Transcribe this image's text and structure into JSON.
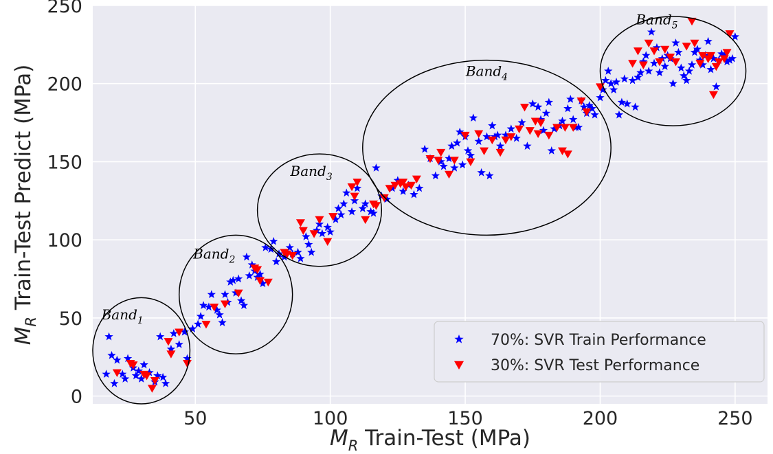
{
  "chart_data": {
    "type": "scatter",
    "xlabel": {
      "symbol": "M",
      "subscript": "R",
      "text": " Train-Test (MPa)"
    },
    "ylabel": {
      "symbol": "M",
      "subscript": "R",
      "text": " Train-Test Predict (MPa)"
    },
    "xlim": [
      12,
      262
    ],
    "ylim": [
      -5,
      250
    ],
    "xticks": [
      50,
      100,
      150,
      200,
      250
    ],
    "yticks": [
      0,
      50,
      100,
      150,
      200,
      250
    ],
    "grid": true,
    "legend_position": "lower-right",
    "colors": {
      "background": "#eaeaf2",
      "grid": "#ffffff",
      "train": "#0000ff",
      "test": "#ff0000"
    },
    "series": [
      {
        "name": "70%: SVR Train Performance",
        "marker": "star",
        "color": "#0000ff",
        "points": [
          [
            17,
            14
          ],
          [
            18,
            38
          ],
          [
            19,
            26
          ],
          [
            20,
            8
          ],
          [
            21,
            23
          ],
          [
            23,
            14
          ],
          [
            24,
            11
          ],
          [
            25,
            24
          ],
          [
            27,
            18
          ],
          [
            28,
            13
          ],
          [
            29,
            16
          ],
          [
            30,
            11
          ],
          [
            31,
            20
          ],
          [
            33,
            15
          ],
          [
            35,
            9
          ],
          [
            36,
            13
          ],
          [
            37,
            38
          ],
          [
            38,
            12
          ],
          [
            39,
            8
          ],
          [
            41,
            30
          ],
          [
            42,
            40
          ],
          [
            44,
            33
          ],
          [
            46,
            41
          ],
          [
            47,
            24
          ],
          [
            49,
            43
          ],
          [
            51,
            46
          ],
          [
            52,
            51
          ],
          [
            53,
            58
          ],
          [
            55,
            57
          ],
          [
            56,
            65
          ],
          [
            58,
            55
          ],
          [
            59,
            52
          ],
          [
            60,
            47
          ],
          [
            61,
            65
          ],
          [
            62,
            60
          ],
          [
            63,
            73
          ],
          [
            64,
            74
          ],
          [
            65,
            66
          ],
          [
            66,
            75
          ],
          [
            67,
            61
          ],
          [
            68,
            58
          ],
          [
            69,
            89
          ],
          [
            70,
            77
          ],
          [
            71,
            84
          ],
          [
            72,
            80
          ],
          [
            73,
            76
          ],
          [
            74,
            78
          ],
          [
            75,
            72
          ],
          [
            76,
            95
          ],
          [
            78,
            94
          ],
          [
            79,
            99
          ],
          [
            80,
            86
          ],
          [
            81,
            91
          ],
          [
            83,
            89
          ],
          [
            85,
            95
          ],
          [
            86,
            91
          ],
          [
            88,
            92
          ],
          [
            89,
            88
          ],
          [
            91,
            102
          ],
          [
            92,
            97
          ],
          [
            93,
            92
          ],
          [
            95,
            106
          ],
          [
            96,
            110
          ],
          [
            97,
            104
          ],
          [
            99,
            108
          ],
          [
            100,
            105
          ],
          [
            102,
            113
          ],
          [
            103,
            120
          ],
          [
            104,
            116
          ],
          [
            105,
            123
          ],
          [
            106,
            130
          ],
          [
            108,
            118
          ],
          [
            109,
            125
          ],
          [
            110,
            133
          ],
          [
            112,
            120
          ],
          [
            113,
            123
          ],
          [
            115,
            118
          ],
          [
            116,
            117
          ],
          [
            117,
            146
          ],
          [
            119,
            128
          ],
          [
            121,
            126
          ],
          [
            123,
            133
          ],
          [
            125,
            138
          ],
          [
            127,
            131
          ],
          [
            129,
            135
          ],
          [
            131,
            129
          ],
          [
            133,
            133
          ],
          [
            135,
            158
          ],
          [
            137,
            152
          ],
          [
            139,
            141
          ],
          [
            141,
            150
          ],
          [
            142,
            147
          ],
          [
            144,
            152
          ],
          [
            145,
            160
          ],
          [
            146,
            146
          ],
          [
            147,
            162
          ],
          [
            148,
            169
          ],
          [
            149,
            148
          ],
          [
            150,
            166
          ],
          [
            151,
            157
          ],
          [
            152,
            154
          ],
          [
            153,
            178
          ],
          [
            155,
            163
          ],
          [
            156,
            143
          ],
          [
            158,
            166
          ],
          [
            159,
            141
          ],
          [
            160,
            173
          ],
          [
            161,
            166
          ],
          [
            162,
            167
          ],
          [
            163,
            160
          ],
          [
            165,
            167
          ],
          [
            167,
            171
          ],
          [
            169,
            165
          ],
          [
            171,
            175
          ],
          [
            173,
            160
          ],
          [
            175,
            187
          ],
          [
            177,
            185
          ],
          [
            178,
            177
          ],
          [
            179,
            170
          ],
          [
            180,
            181
          ],
          [
            181,
            188
          ],
          [
            182,
            157
          ],
          [
            183,
            171
          ],
          [
            185,
            173
          ],
          [
            186,
            176
          ],
          [
            188,
            184
          ],
          [
            189,
            190
          ],
          [
            190,
            177
          ],
          [
            191,
            172
          ],
          [
            192,
            172
          ],
          [
            193,
            189
          ],
          [
            194,
            185
          ],
          [
            195,
            181
          ],
          [
            196,
            186
          ],
          [
            197,
            184
          ],
          [
            198,
            180
          ],
          [
            200,
            191
          ],
          [
            201,
            196
          ],
          [
            202,
            202
          ],
          [
            203,
            208
          ],
          [
            204,
            200
          ],
          [
            205,
            196
          ],
          [
            206,
            201
          ],
          [
            207,
            180
          ],
          [
            208,
            188
          ],
          [
            209,
            203
          ],
          [
            210,
            187
          ],
          [
            212,
            202
          ],
          [
            213,
            185
          ],
          [
            214,
            204
          ],
          [
            215,
            207
          ],
          [
            216,
            214
          ],
          [
            217,
            218
          ],
          [
            218,
            208
          ],
          [
            219,
            233
          ],
          [
            220,
            213
          ],
          [
            221,
            223
          ],
          [
            222,
            207
          ],
          [
            223,
            216
          ],
          [
            224,
            211
          ],
          [
            225,
            218
          ],
          [
            226,
            216
          ],
          [
            227,
            200
          ],
          [
            228,
            226
          ],
          [
            229,
            220
          ],
          [
            230,
            210
          ],
          [
            231,
            205
          ],
          [
            232,
            202
          ],
          [
            233,
            208
          ],
          [
            234,
            212
          ],
          [
            235,
            220
          ],
          [
            236,
            222
          ],
          [
            237,
            215
          ],
          [
            238,
            212
          ],
          [
            239,
            218
          ],
          [
            240,
            227
          ],
          [
            241,
            209
          ],
          [
            242,
            216
          ],
          [
            243,
            198
          ],
          [
            244,
            215
          ],
          [
            245,
            219
          ],
          [
            246,
            218
          ],
          [
            247,
            214
          ],
          [
            248,
            215
          ],
          [
            249,
            216
          ],
          [
            250,
            230
          ]
        ]
      },
      {
        "name": "30%: SVR Test Performance",
        "marker": "triangle-down",
        "color": "#ff0000",
        "points": [
          [
            21,
            15
          ],
          [
            26,
            21
          ],
          [
            27,
            20
          ],
          [
            31,
            14
          ],
          [
            32,
            13
          ],
          [
            34,
            5
          ],
          [
            35,
            10
          ],
          [
            40,
            35
          ],
          [
            41,
            27
          ],
          [
            44,
            41
          ],
          [
            47,
            21
          ],
          [
            54,
            46
          ],
          [
            57,
            57
          ],
          [
            61,
            59
          ],
          [
            66,
            66
          ],
          [
            72,
            82
          ],
          [
            73,
            81
          ],
          [
            74,
            74
          ],
          [
            77,
            73
          ],
          [
            83,
            92
          ],
          [
            84,
            91
          ],
          [
            86,
            90
          ],
          [
            89,
            111
          ],
          [
            90,
            106
          ],
          [
            94,
            104
          ],
          [
            96,
            113
          ],
          [
            99,
            99
          ],
          [
            101,
            115
          ],
          [
            108,
            134
          ],
          [
            109,
            128
          ],
          [
            110,
            137
          ],
          [
            113,
            113
          ],
          [
            116,
            123
          ],
          [
            117,
            122
          ],
          [
            120,
            127
          ],
          [
            122,
            133
          ],
          [
            124,
            135
          ],
          [
            126,
            136
          ],
          [
            127,
            137
          ],
          [
            128,
            134
          ],
          [
            130,
            135
          ],
          [
            132,
            139
          ],
          [
            137,
            152
          ],
          [
            140,
            151
          ],
          [
            141,
            156
          ],
          [
            144,
            142
          ],
          [
            146,
            151
          ],
          [
            150,
            167
          ],
          [
            152,
            150
          ],
          [
            155,
            168
          ],
          [
            157,
            157
          ],
          [
            160,
            164
          ],
          [
            163,
            156
          ],
          [
            165,
            164
          ],
          [
            167,
            166
          ],
          [
            170,
            171
          ],
          [
            172,
            185
          ],
          [
            174,
            170
          ],
          [
            176,
            176
          ],
          [
            177,
            168
          ],
          [
            178,
            175
          ],
          [
            181,
            167
          ],
          [
            184,
            172
          ],
          [
            186,
            157
          ],
          [
            187,
            172
          ],
          [
            188,
            155
          ],
          [
            190,
            172
          ],
          [
            193,
            189
          ],
          [
            195,
            182
          ],
          [
            200,
            198
          ],
          [
            212,
            213
          ],
          [
            214,
            221
          ],
          [
            216,
            212
          ],
          [
            218,
            226
          ],
          [
            220,
            221
          ],
          [
            222,
            214
          ],
          [
            224,
            222
          ],
          [
            226,
            217
          ],
          [
            228,
            214
          ],
          [
            232,
            224
          ],
          [
            234,
            240
          ],
          [
            235,
            226
          ],
          [
            237,
            213
          ],
          [
            238,
            218
          ],
          [
            240,
            216
          ],
          [
            241,
            218
          ],
          [
            242,
            193
          ],
          [
            243,
            211
          ],
          [
            244,
            214
          ],
          [
            246,
            216
          ],
          [
            247,
            220
          ],
          [
            248,
            232
          ]
        ]
      }
    ],
    "annotations": [
      {
        "label": "Band",
        "sub": "1",
        "cx": 30,
        "cy": 29,
        "rx": 18,
        "ry": 34,
        "tx": 23,
        "ty": 49
      },
      {
        "label": "Band",
        "sub": "2",
        "cx": 65,
        "cy": 65,
        "rx": 21,
        "ry": 38,
        "tx": 57,
        "ty": 88
      },
      {
        "label": "Band",
        "sub": "3",
        "cx": 96,
        "cy": 119,
        "rx": 23,
        "ry": 36,
        "tx": 93,
        "ty": 141
      },
      {
        "label": "Band",
        "sub": "4",
        "cx": 158,
        "cy": 159,
        "rx": 46,
        "ry": 56,
        "tx": 158,
        "ty": 205
      },
      {
        "label": "Band",
        "sub": "5",
        "cx": 227,
        "cy": 208,
        "rx": 27,
        "ry": 35,
        "tx": 221,
        "ty": 238
      }
    ]
  }
}
